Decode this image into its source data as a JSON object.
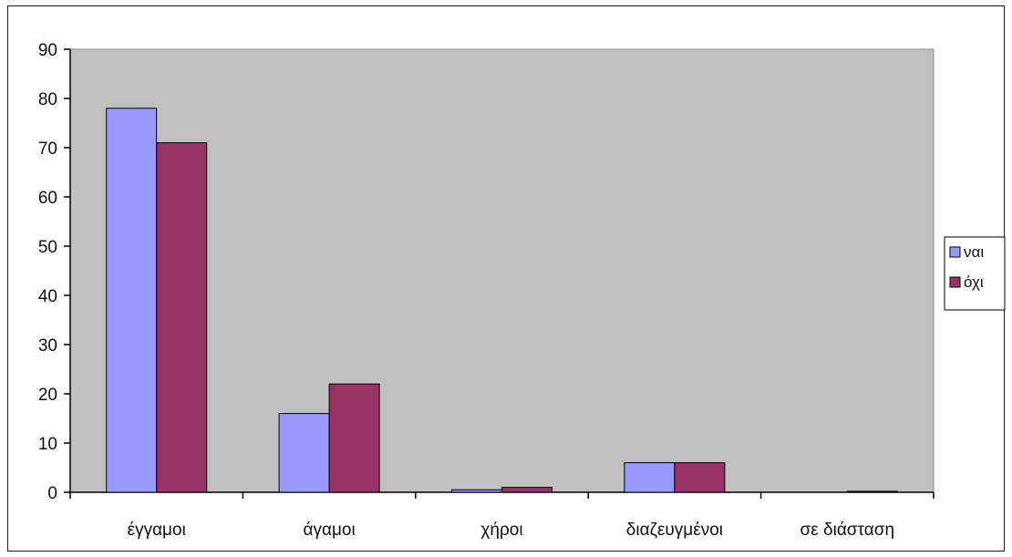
{
  "chart_data": {
    "type": "bar",
    "categories": [
      "έγγαμοι",
      "άγαμοι",
      "χήροι",
      "διαζευγμένοι",
      "σε διάσταση"
    ],
    "series": [
      {
        "name": "ναι",
        "values": [
          78,
          16,
          0.5,
          6,
          0
        ],
        "color": "#9999ff"
      },
      {
        "name": "όχι",
        "values": [
          71,
          22,
          1,
          6,
          0.2
        ],
        "color": "#993366"
      }
    ],
    "title": "",
    "xlabel": "",
    "ylabel": "",
    "ylim": [
      0,
      90
    ],
    "yticks": [
      0,
      10,
      20,
      30,
      40,
      50,
      60,
      70,
      80,
      90
    ],
    "grid": false,
    "legend_position": "right",
    "plot_background": "#c0c0c0"
  }
}
